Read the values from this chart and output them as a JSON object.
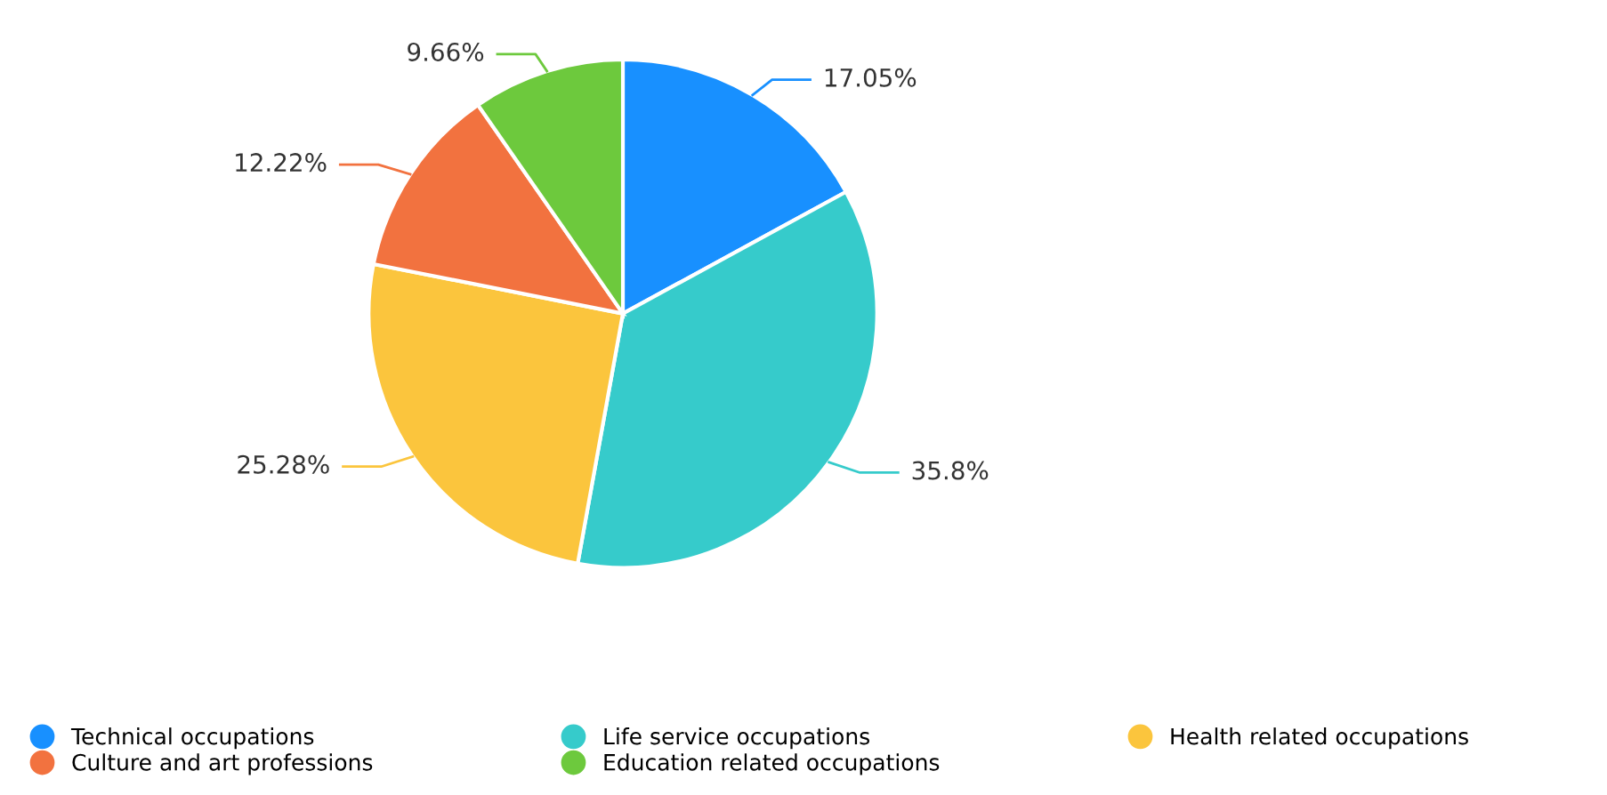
{
  "chart_data": {
    "type": "pie",
    "categories": [
      "Technical occupations",
      "Life service occupations",
      "Health related occupations",
      "Culture and art professions",
      "Education related occupations"
    ],
    "values": [
      17.05,
      35.8,
      25.28,
      12.22,
      9.66
    ],
    "colors": [
      "#1890ff",
      "#36cbcb",
      "#fbc53d",
      "#f2723f",
      "#6dc93d"
    ],
    "value_labels": [
      "17.05%",
      "35.8%",
      "25.28%",
      "12.22%",
      "9.66%"
    ],
    "legend": "bottom"
  }
}
